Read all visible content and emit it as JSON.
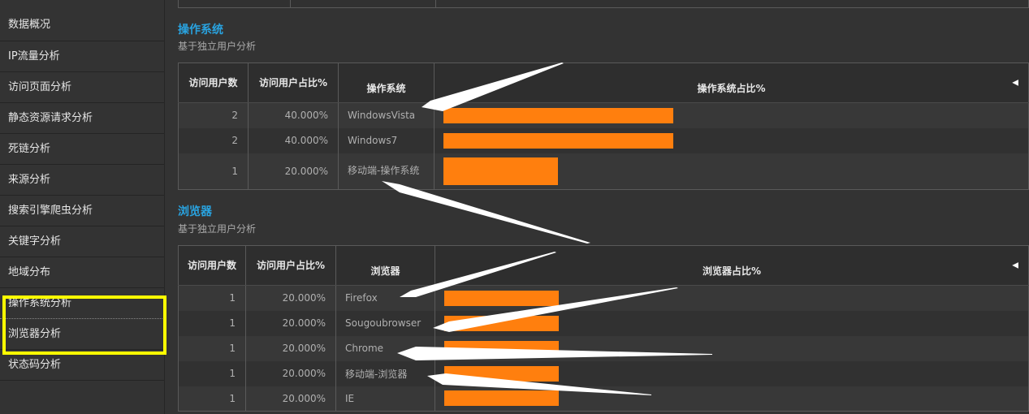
{
  "sidebar": {
    "items": [
      {
        "label": "数据概况"
      },
      {
        "label": "IP流量分析"
      },
      {
        "label": "访问页面分析"
      },
      {
        "label": "静态资源请求分析"
      },
      {
        "label": "死链分析"
      },
      {
        "label": "来源分析"
      },
      {
        "label": "搜索引擎爬虫分析"
      },
      {
        "label": "关键字分析"
      },
      {
        "label": "地域分布"
      },
      {
        "label": "操作系统分析"
      },
      {
        "label": "浏览器分析"
      },
      {
        "label": "状态码分析"
      }
    ]
  },
  "os_section": {
    "title": "操作系统",
    "subtitle": "基于独立用户分析",
    "headers": {
      "users": "访问用户数",
      "ratio": "访问用户占比%",
      "name": "操作系统",
      "chart": "操作系统占比%"
    },
    "sort_icon": "triangle-left-icon",
    "rows": [
      {
        "users": "2",
        "ratio": "40.000%",
        "name": "WindowsVista",
        "value": 40
      },
      {
        "users": "2",
        "ratio": "40.000%",
        "name": "Windows7",
        "value": 40
      },
      {
        "users": "1",
        "ratio": "20.000%",
        "name": "移动端-操作系统",
        "value": 20
      }
    ]
  },
  "browser_section": {
    "title": "浏览器",
    "subtitle": "基于独立用户分析",
    "headers": {
      "users": "访问用户数",
      "ratio": "访问用户占比%",
      "name": "浏览器",
      "chart": "浏览器占比%"
    },
    "sort_icon": "triangle-left-icon",
    "rows": [
      {
        "users": "1",
        "ratio": "20.000%",
        "name": "Firefox",
        "value": 20
      },
      {
        "users": "1",
        "ratio": "20.000%",
        "name": "Sougoubrowser",
        "value": 20
      },
      {
        "users": "1",
        "ratio": "20.000%",
        "name": "Chrome",
        "value": 20
      },
      {
        "users": "1",
        "ratio": "20.000%",
        "name": "移动端-浏览器",
        "value": 20
      },
      {
        "users": "1",
        "ratio": "20.000%",
        "name": "IE",
        "value": 20
      }
    ]
  },
  "colors": {
    "bar": "#ff7f0e",
    "section_title": "#29a3e0",
    "highlight": "#ffff00"
  }
}
